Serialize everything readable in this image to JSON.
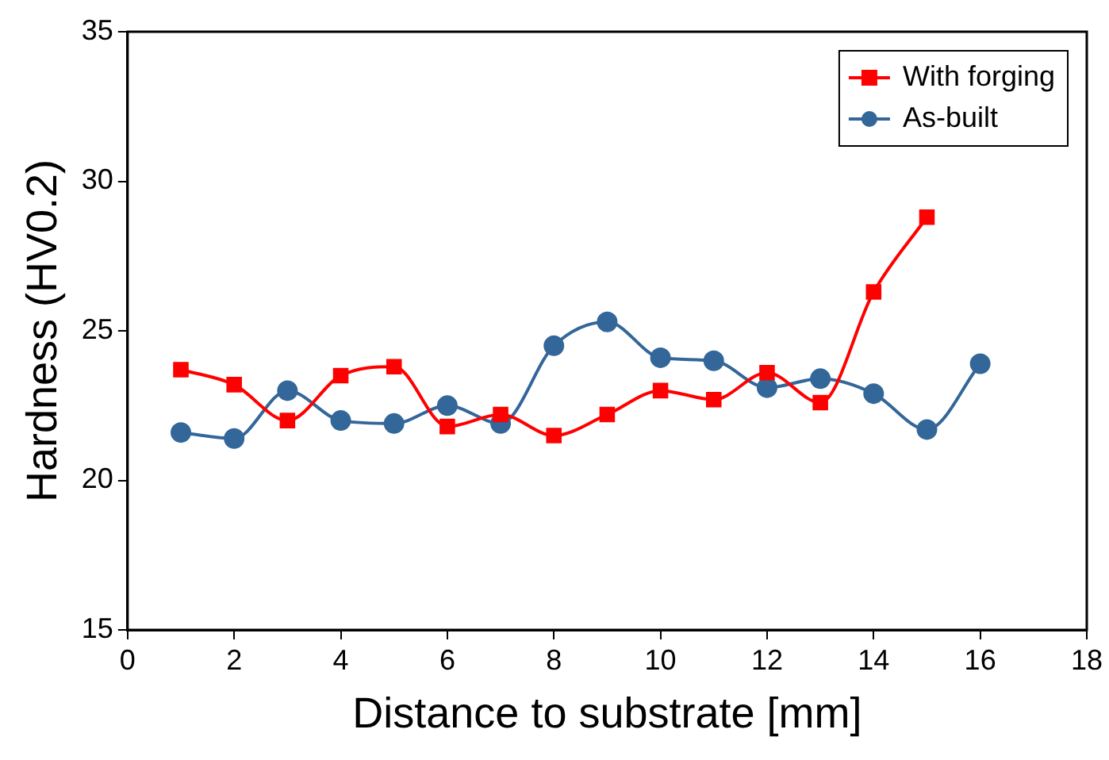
{
  "chart_data": {
    "type": "line",
    "xlabel": "Distance to substrate [mm]",
    "ylabel": "Hardness (HV0.2)",
    "x": [
      1,
      2,
      3,
      4,
      5,
      6,
      7,
      8,
      9,
      10,
      11,
      12,
      13,
      14,
      15,
      16
    ],
    "series": [
      {
        "name": "With forging",
        "color": "#ff0000",
        "marker": "square",
        "x": [
          1,
          2,
          3,
          4,
          5,
          6,
          7,
          8,
          9,
          10,
          11,
          12,
          13,
          14,
          15
        ],
        "values": [
          23.7,
          23.2,
          22.0,
          23.5,
          23.8,
          21.8,
          22.2,
          21.5,
          22.2,
          23.0,
          22.7,
          23.6,
          22.6,
          26.3,
          28.8
        ]
      },
      {
        "name": "As-built",
        "color": "#336699",
        "marker": "circle",
        "values": [
          21.6,
          21.4,
          23.0,
          22.0,
          21.9,
          22.5,
          21.9,
          24.5,
          25.3,
          24.1,
          24.0,
          23.1,
          23.4,
          22.9,
          21.7,
          23.9
        ]
      }
    ],
    "xlim": [
      0,
      18
    ],
    "xticks": [
      0,
      2,
      4,
      6,
      8,
      10,
      12,
      14,
      16,
      18
    ],
    "ylim": [
      15,
      35
    ],
    "yticks": [
      15,
      20,
      25,
      30,
      35
    ],
    "grid": false,
    "legend": "top right",
    "line_style": "solid"
  }
}
